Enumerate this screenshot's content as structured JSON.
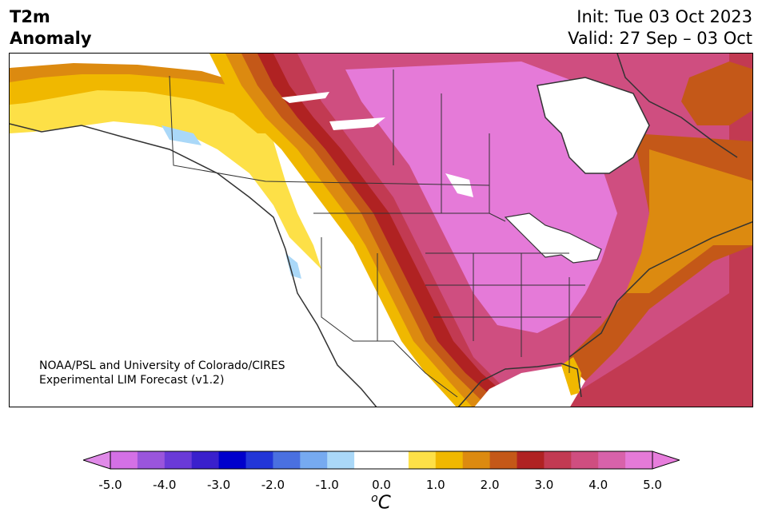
{
  "header": {
    "title_line1": "T2m",
    "title_line2": "Anomaly",
    "init": "Init: Tue 03 Oct 2023",
    "valid": "Valid: 27 Sep – 03 Oct"
  },
  "map": {
    "credit_line1": "NOAA/PSL and University of Colorado/CIRES",
    "credit_line2": "Experimental LIM Forecast (v1.2)",
    "region": "North America",
    "field": "2m temperature anomaly"
  },
  "colorbar": {
    "unit_prefix": "o",
    "unit_symbol": "C",
    "ticks": [
      "-5.0",
      "-4.0",
      "-3.0",
      "-2.0",
      "-1.0",
      "0.0",
      "1.0",
      "2.0",
      "3.0",
      "4.0",
      "5.0"
    ],
    "colors": [
      "#d470e6",
      "#9a55dc",
      "#6a3ad8",
      "#3a20cc",
      "#0000cc",
      "#2236d8",
      "#4a70e0",
      "#76aaf0",
      "#aad8f8",
      "#ffffff",
      "#ffffff",
      "#fde047",
      "#f0b800",
      "#dc8a10",
      "#c45818",
      "#b02222",
      "#c23a52",
      "#cf4e80",
      "#d862aa",
      "#e57ad8"
    ],
    "under_color": "#e08ae8",
    "over_color": "#e77ddc"
  }
}
